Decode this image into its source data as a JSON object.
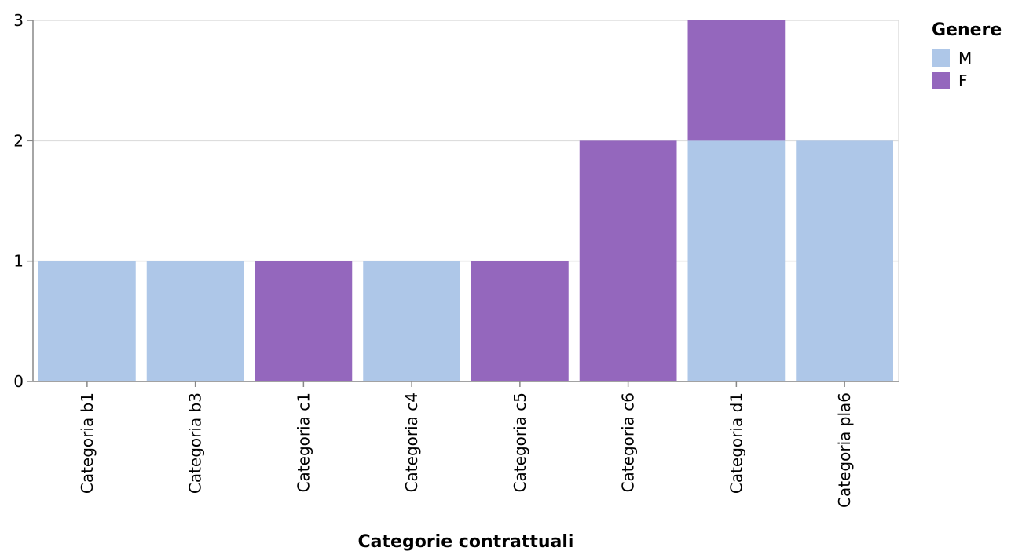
{
  "chart_data": {
    "type": "bar",
    "stacked": true,
    "categories": [
      "Categoria b1",
      "Categoria b3",
      "Categoria c1",
      "Categoria c4",
      "Categoria c5",
      "Categoria c6",
      "Categoria d1",
      "Categoria pla6"
    ],
    "series": [
      {
        "name": "M",
        "color": "#aec7e8",
        "values": [
          1,
          1,
          0,
          1,
          0,
          0,
          2,
          2
        ]
      },
      {
        "name": "F",
        "color": "#9467bd",
        "values": [
          0,
          0,
          1,
          0,
          1,
          2,
          1,
          0
        ]
      }
    ],
    "xlabel": "Categorie contrattuali",
    "ylabel": "",
    "ylim": [
      0,
      3
    ],
    "yticks": [
      "0",
      "1",
      "2",
      "3"
    ],
    "grid": true,
    "legend": {
      "title": "Genere",
      "position": "top-right"
    }
  }
}
